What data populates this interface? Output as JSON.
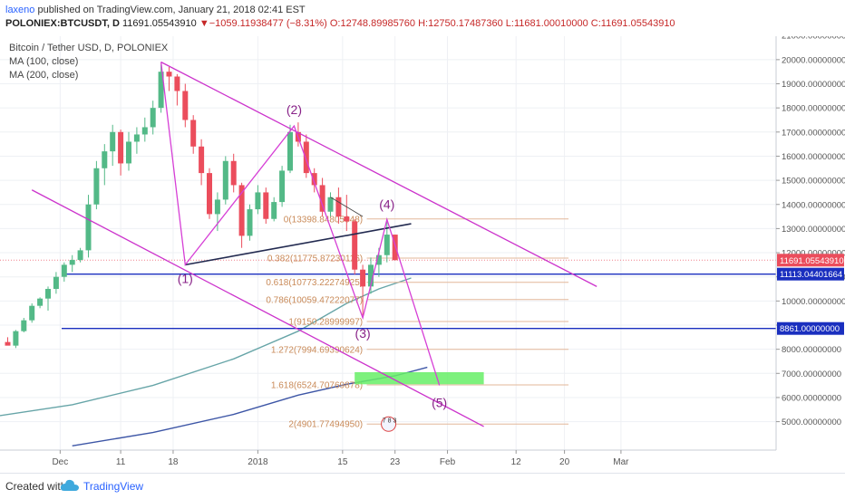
{
  "header": {
    "author": "laxeno",
    "published": " published on TradingView.com, January 21, 2018 02:41 EST",
    "symbol": "POLONIEX:BTCUSDT, D",
    "last": "11691.05543910",
    "change_arrow": "▼",
    "change": "−1059.11938477 (−8.31%)",
    "open": "O:12748.89985760",
    "high": "H:12750.17487360",
    "low": "L:11681.00010000",
    "close": "C:11691.05543910"
  },
  "legend": {
    "title": "Bitcoin / Tether USD, D, POLONIEX",
    "ma100": "MA (100, close)",
    "ma200": "MA (200, close)"
  },
  "footer": {
    "created": "Created with",
    "brand": "TradingView"
  },
  "colors": {
    "up": "#53b987",
    "down": "#eb4d5c",
    "wedge": "#cc33cc",
    "wave": "#d63fd6",
    "fib": "#c98a58",
    "fibline": "#e3b79a",
    "blue": "#1a2fbf",
    "ma100": "#67a5a8",
    "ma200": "#3d56a6",
    "target": "#66ee66",
    "trend": "#222a50",
    "lastprice": "#eb4d5c"
  },
  "chart_data": {
    "type": "candlestick",
    "title": "Bitcoin / Tether USD, D, POLONIEX",
    "xlabel": "",
    "ylabel": "",
    "ylim": [
      4500,
      22300
    ],
    "xlim": [
      -2,
      72
    ],
    "x_ticks": [
      {
        "i": 6.5,
        "label": "Dec"
      },
      {
        "i": 14,
        "label": "11"
      },
      {
        "i": 20.5,
        "label": "18"
      },
      {
        "i": 31,
        "label": "2018"
      },
      {
        "i": 41.5,
        "label": "15"
      },
      {
        "i": 48,
        "label": "23"
      },
      {
        "i": 54.5,
        "label": "Feb"
      },
      {
        "i": 63,
        "label": "12"
      },
      {
        "i": 69,
        "label": "20"
      },
      {
        "i": 76,
        "label": "Mar"
      }
    ],
    "y_ticks": [
      5000,
      6000,
      7000,
      8000,
      9000,
      10000,
      11000,
      12000,
      13000,
      14000,
      15000,
      16000,
      17000,
      18000,
      19000,
      20000,
      21000,
      22000
    ],
    "y_tick_labels": [
      "5000.00000000",
      "6000.00000000",
      "7000.00000000",
      "8000.00000000",
      "9000.00000000",
      "10000.00000000",
      "11000.00000000",
      "12000.00000000",
      "13000.00000000",
      "14000.00000000",
      "15000.00000000",
      "16000.00000000",
      "17000.00000000",
      "18000.00000000",
      "19000.00000000",
      "20000.00000000",
      "21000.00000000",
      "22000.00000000"
    ],
    "candles": [
      [
        8300,
        8500,
        8200,
        8150
      ],
      [
        8150,
        8800,
        8050,
        8750
      ],
      [
        8750,
        9300,
        8700,
        9200
      ],
      [
        9200,
        9900,
        9100,
        9800
      ],
      [
        9800,
        10150,
        9700,
        10100
      ],
      [
        10100,
        10600,
        9600,
        10500
      ],
      [
        10500,
        11200,
        10300,
        11000
      ],
      [
        11000,
        11600,
        10800,
        11500
      ],
      [
        11500,
        11900,
        11200,
        11700
      ],
      [
        11700,
        12200,
        11600,
        12100
      ],
      [
        12100,
        14400,
        11800,
        14000
      ],
      [
        14000,
        15800,
        13800,
        15500
      ],
      [
        15500,
        16500,
        14800,
        16200
      ],
      [
        16200,
        17300,
        15600,
        17000
      ],
      [
        17000,
        17100,
        15200,
        15700
      ],
      [
        15700,
        17000,
        15400,
        16600
      ],
      [
        16600,
        17200,
        16100,
        16900
      ],
      [
        16900,
        17600,
        16600,
        17200
      ],
      [
        17200,
        18300,
        16900,
        18000
      ],
      [
        18000,
        19800,
        17800,
        19500
      ],
      [
        19500,
        19700,
        18700,
        19300
      ],
      [
        19300,
        19400,
        18100,
        18700
      ],
      [
        18700,
        19000,
        17200,
        17500
      ],
      [
        17500,
        17700,
        16100,
        16400
      ],
      [
        16400,
        16700,
        14800,
        15300
      ],
      [
        15300,
        15500,
        13400,
        13600
      ],
      [
        13600,
        14500,
        12900,
        14200
      ],
      [
        14200,
        16000,
        14000,
        15800
      ],
      [
        15800,
        16100,
        14500,
        14800
      ],
      [
        14800,
        14900,
        12200,
        12700
      ],
      [
        12700,
        14000,
        12500,
        13800
      ],
      [
        13800,
        14800,
        13600,
        14500
      ],
      [
        14500,
        14700,
        13200,
        13400
      ],
      [
        13400,
        14300,
        13300,
        14100
      ],
      [
        14100,
        15600,
        13900,
        15400
      ],
      [
        15400,
        17300,
        15300,
        17000
      ],
      [
        17000,
        17400,
        16400,
        16600
      ],
      [
        16600,
        16900,
        15100,
        15300
      ],
      [
        15300,
        15500,
        14500,
        14800
      ],
      [
        14800,
        15100,
        13500,
        13700
      ],
      [
        13700,
        14500,
        13500,
        14300
      ],
      [
        14300,
        14700,
        13200,
        13500
      ],
      [
        13500,
        14400,
        12900,
        13300
      ],
      [
        13300,
        13400,
        11100,
        11300
      ],
      [
        11300,
        11500,
        9400,
        10600
      ],
      [
        10600,
        11800,
        10300,
        11500
      ],
      [
        11500,
        12200,
        11000,
        11900
      ],
      [
        11900,
        13400,
        11600,
        12750
      ],
      [
        12750,
        12750,
        11681,
        11691
      ]
    ],
    "ma100": [
      [
        -2,
        5200
      ],
      [
        8,
        5700
      ],
      [
        18,
        6500
      ],
      [
        28,
        7600
      ],
      [
        36,
        8750
      ],
      [
        42,
        9900
      ],
      [
        46,
        10500
      ],
      [
        50,
        10950
      ]
    ],
    "ma200": [
      [
        8,
        4000
      ],
      [
        18,
        4550
      ],
      [
        28,
        5300
      ],
      [
        36,
        6100
      ],
      [
        42,
        6550
      ],
      [
        48,
        6900
      ],
      [
        52,
        7250
      ]
    ],
    "horizontal_levels": [
      {
        "price": 11113.04401664,
        "label": "11113.04401664"
      },
      {
        "price": 8861.0,
        "label": "8861.00000000"
      }
    ],
    "last_price_label": "11691.05543910",
    "fib_levels": [
      {
        "label": "0(13398.84805048)",
        "price": 13398.85
      },
      {
        "label": "0.382(11775.87230116)",
        "price": 11775.87
      },
      {
        "label": "0.618(10773.22274925)",
        "price": 10773.22
      },
      {
        "label": "0.786(10059.47222077)",
        "price": 10059.47
      },
      {
        "label": "1(9150.28999997)",
        "price": 9150.29
      },
      {
        "label": "1.272(7994.69390624)",
        "price": 7994.69
      },
      {
        "label": "1.618(6524.70769878)",
        "price": 6524.71
      },
      {
        "label": "2(4901.77494950)",
        "price": 4901.77
      }
    ],
    "waves": [
      {
        "label": "(1)",
        "i": 22,
        "price": 11500
      },
      {
        "label": "(2)",
        "i": 35.5,
        "price": 17250
      },
      {
        "label": "(3)",
        "i": 44,
        "price": 9300
      },
      {
        "label": "(4)",
        "i": 47,
        "price": 13380
      },
      {
        "label": "(5)",
        "i": 53.5,
        "price": 6500
      }
    ],
    "target_zone": {
      "i0": 43,
      "i1": 59,
      "p0": 6550,
      "p1": 7050
    },
    "wedge_upper": [
      [
        19,
        19900
      ],
      [
        73,
        10600
      ]
    ],
    "wedge_lower": [
      [
        3,
        14600
      ],
      [
        59,
        4800
      ]
    ],
    "trendline": [
      [
        22,
        11500
      ],
      [
        50,
        13200
      ]
    ],
    "small_line": [
      [
        40,
        14300
      ],
      [
        44,
        13500
      ]
    ]
  },
  "marker": {
    "label": "7 8 3"
  }
}
